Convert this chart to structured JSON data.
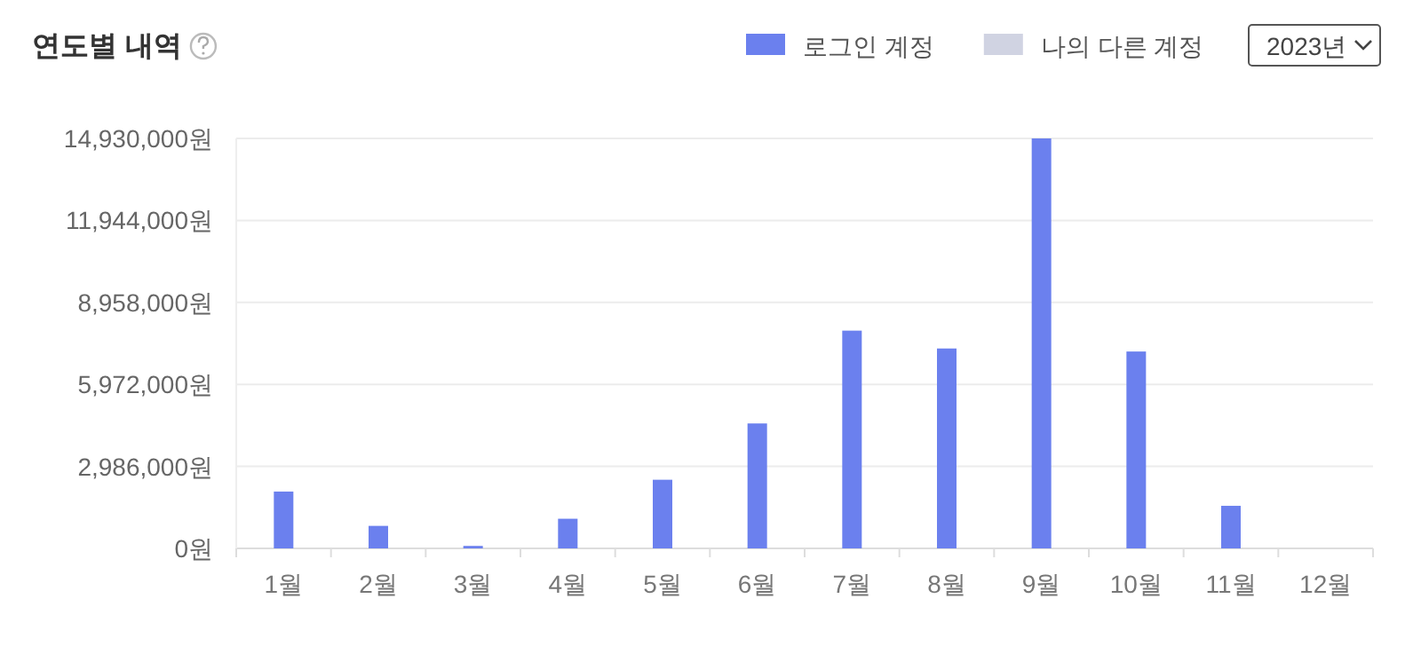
{
  "chart_data": {
    "type": "bar",
    "title": "연도별 내역",
    "categories": [
      "1월",
      "2월",
      "3월",
      "4월",
      "5월",
      "6월",
      "7월",
      "8월",
      "9월",
      "10월",
      "11월",
      "12월"
    ],
    "series": [
      {
        "name": "로그인 계정",
        "color": "#6b80ee",
        "values": [
          2070000,
          820000,
          90000,
          1080000,
          2500000,
          4550000,
          7930000,
          7280000,
          14930000,
          7170000,
          1550000,
          null
        ]
      },
      {
        "name": "나의 다른 계정",
        "color": "#d0d3e2",
        "values": [
          null,
          null,
          null,
          null,
          null,
          null,
          null,
          null,
          null,
          null,
          null,
          null
        ]
      }
    ],
    "ylim": [
      0,
      14930000
    ],
    "yticks": [
      {
        "value": 0,
        "label": "0원"
      },
      {
        "value": 2986000,
        "label": "2,986,000원"
      },
      {
        "value": 5972000,
        "label": "5,972,000원"
      },
      {
        "value": 8958000,
        "label": "8,958,000원"
      },
      {
        "value": 11944000,
        "label": "11,944,000원"
      },
      {
        "value": 14930000,
        "label": "14,930,000원"
      }
    ],
    "grid": "y",
    "legend": "top right",
    "annotations": [
      "2023년"
    ]
  }
}
